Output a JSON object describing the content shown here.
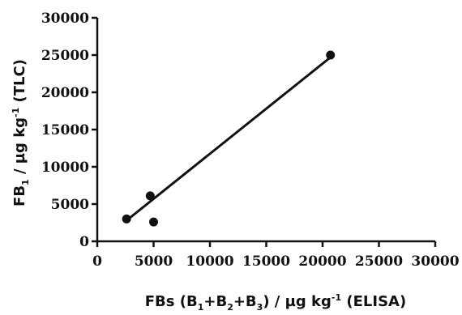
{
  "chart_data": {
    "type": "scatter",
    "xlabel": {
      "parts": [
        {
          "text": "FBs (B",
          "shift": ""
        },
        {
          "text": "1",
          "shift": "sub"
        },
        {
          "text": "+B",
          "shift": ""
        },
        {
          "text": "2",
          "shift": "sub"
        },
        {
          "text": "+B",
          "shift": ""
        },
        {
          "text": "3",
          "shift": "sub"
        },
        {
          "text": ") / µg kg",
          "shift": ""
        },
        {
          "text": "-1",
          "shift": "sup"
        },
        {
          "text": " (ELISA)",
          "shift": ""
        }
      ]
    },
    "ylabel": {
      "parts": [
        {
          "text": "FB",
          "shift": ""
        },
        {
          "text": "1",
          "shift": "sub"
        },
        {
          "text": " / µg kg",
          "shift": ""
        },
        {
          "text": "-1",
          "shift": "sup"
        },
        {
          "text": " (TLC)",
          "shift": ""
        }
      ]
    },
    "xlim": [
      0,
      30000
    ],
    "ylim": [
      0,
      30000
    ],
    "xticks": [
      "0",
      "5000",
      "10000",
      "15000",
      "20000",
      "25000",
      "30000"
    ],
    "yticks": [
      "0",
      "5000",
      "10000",
      "15000",
      "20000",
      "25000",
      "30000"
    ],
    "grid": false,
    "points": [
      {
        "x": 2600,
        "y": 3000
      },
      {
        "x": 4700,
        "y": 6100
      },
      {
        "x": 5000,
        "y": 2600
      },
      {
        "x": 20700,
        "y": 25000
      }
    ],
    "fit_line": {
      "x": [
        2600,
        20700
      ],
      "y": [
        2800,
        24700
      ]
    },
    "marker_color": "#111111",
    "line_color": "#111111"
  }
}
